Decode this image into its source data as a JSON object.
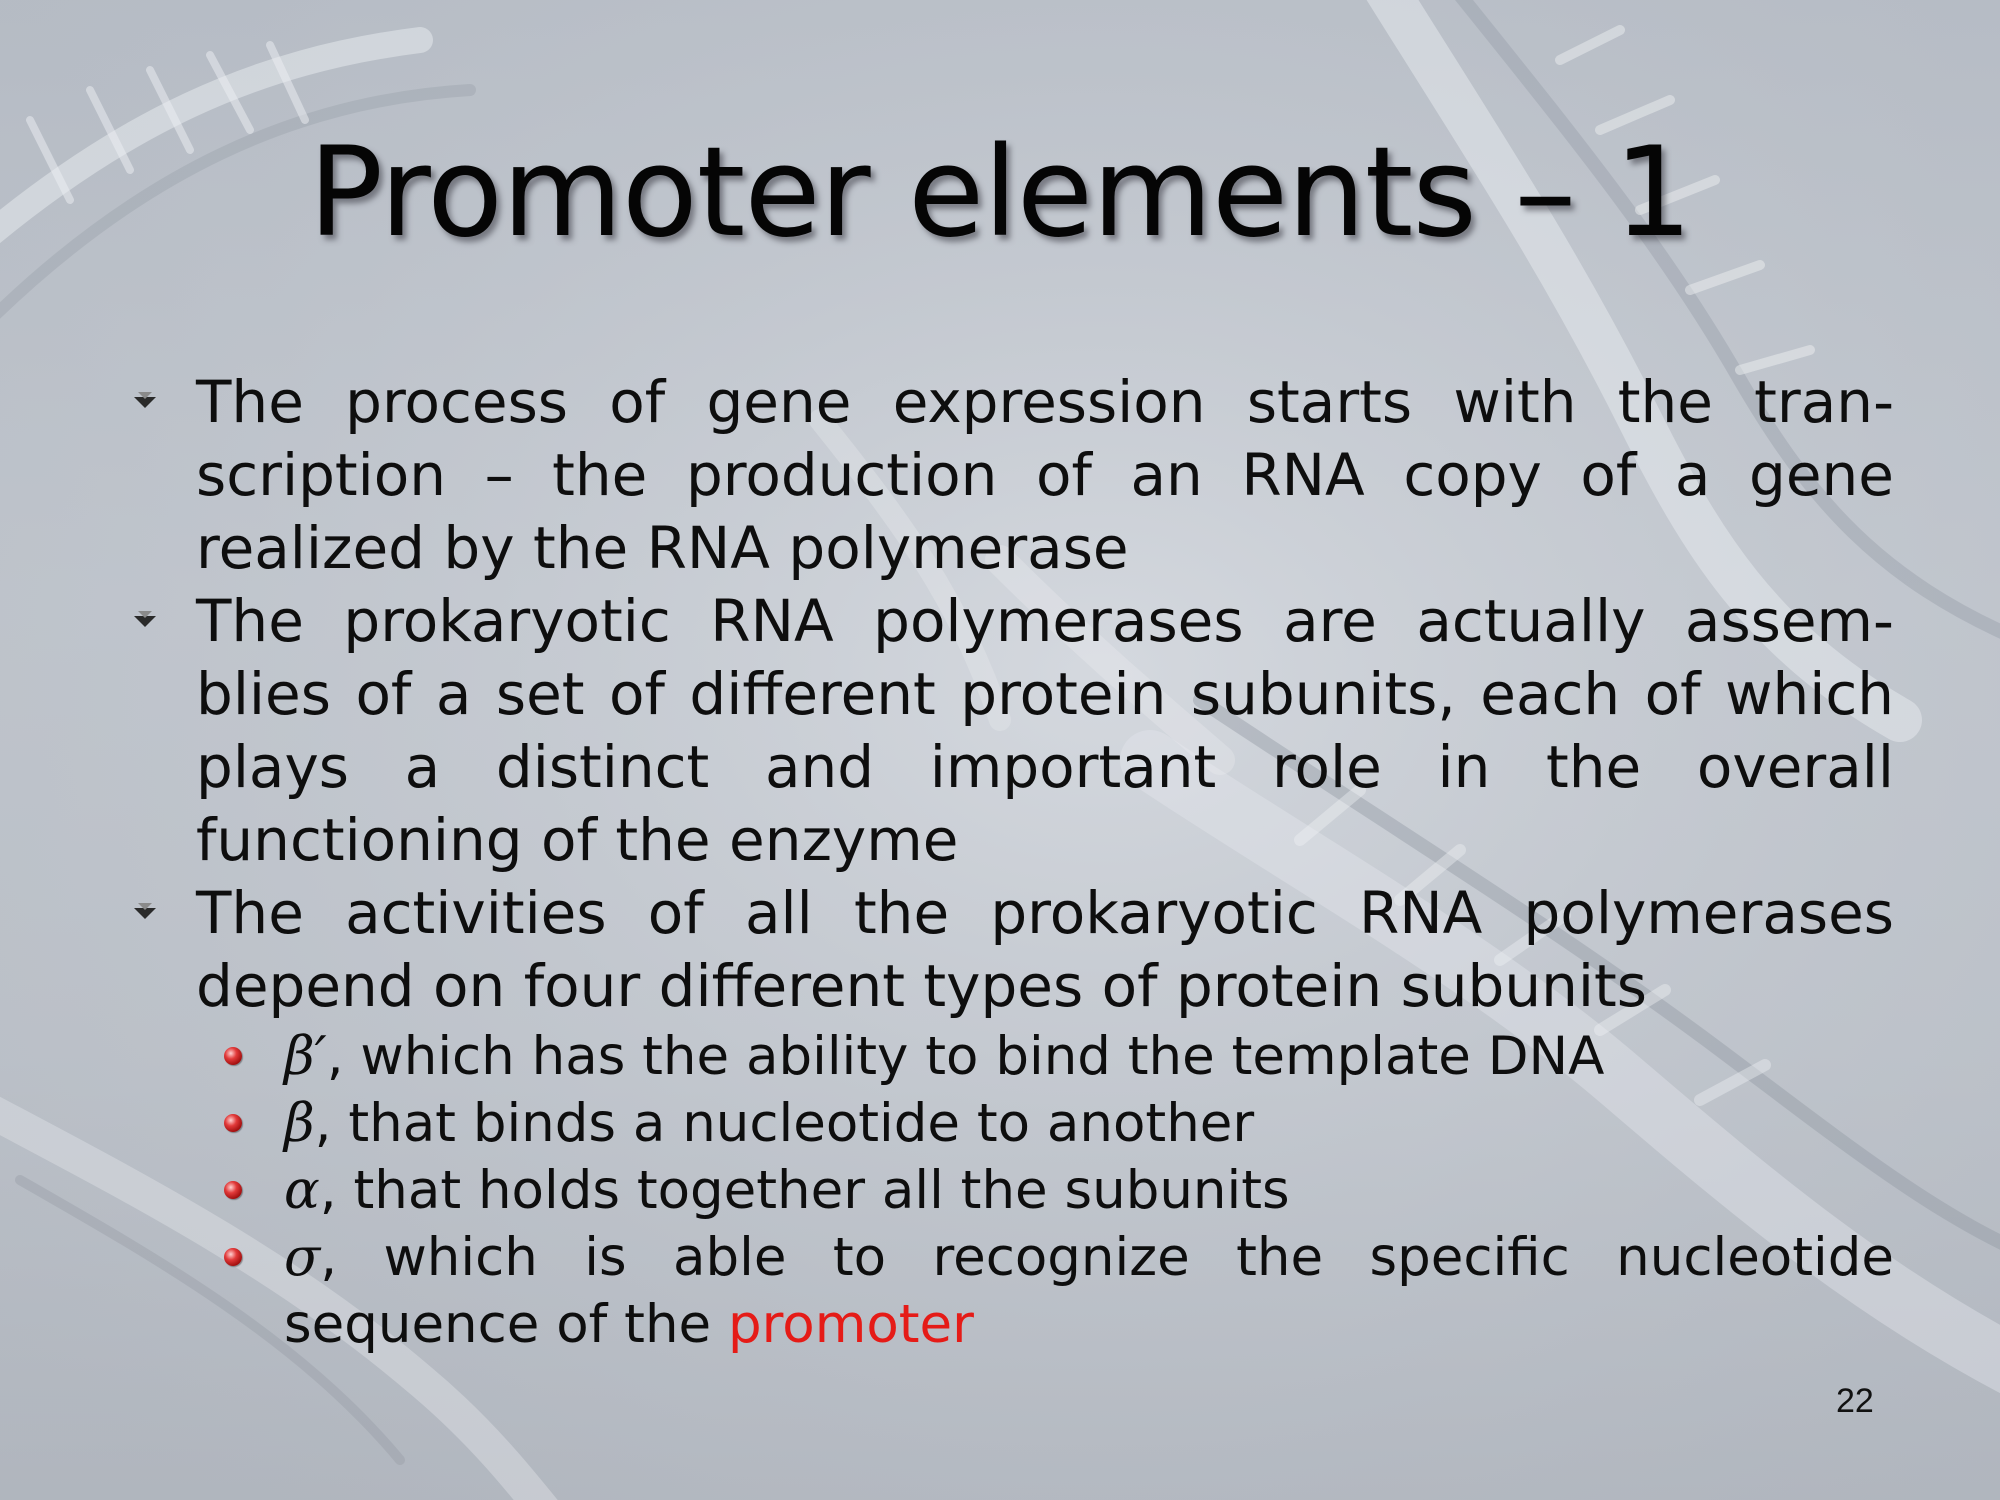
{
  "slide": {
    "title": "Promoter elements – 1",
    "page_number": "22",
    "bullets": [
      {
        "text": "The process of gene expression starts with the tran-scription – the production of an RNA copy of a gene realized by the RNA polymerase"
      },
      {
        "text": "The prokaryotic RNA polymerases are actually assem-blies of a set of different protein subunits, each of which plays a distinct and important role in the overall functioning of the enzyme"
      },
      {
        "text": "The activities of all the prokaryotic RNA polymerases depend on four different types of protein subunits"
      }
    ],
    "sub_bullets": [
      {
        "symbol": "β′",
        "text": ", which has the ability to bind the template DNA"
      },
      {
        "symbol": "β",
        "text": ", that binds a nucleotide to another"
      },
      {
        "symbol": "α",
        "text": ", that holds together all the subunits"
      },
      {
        "symbol": "σ",
        "text": ", which is able to recognize the specific nucleotide sequence of the ",
        "highlight": "promoter"
      }
    ],
    "colors": {
      "highlight": "#e51b17",
      "background": "#c3c8cf",
      "sub_bullet_dot": "#c21f1f"
    }
  }
}
